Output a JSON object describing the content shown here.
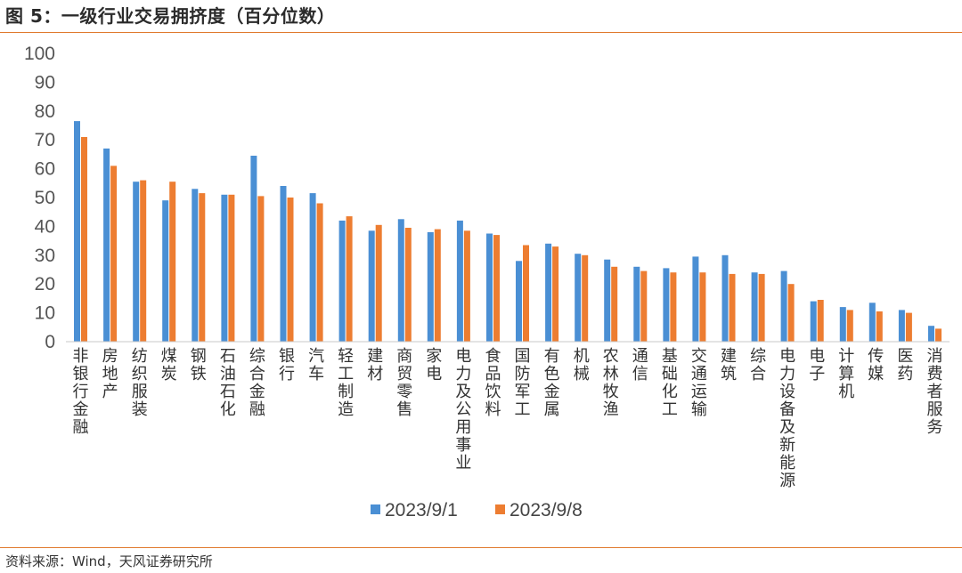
{
  "header": {
    "title": "图 5：一级行业交易拥挤度（百分位数）"
  },
  "footer": {
    "source": "资料来源：Wind，天风证券研究所"
  },
  "colors": {
    "series1": "#4a8fd4",
    "series2": "#ed7d31",
    "rule": "#e07a2e"
  },
  "chart_data": {
    "type": "bar",
    "title": "",
    "xlabel": "",
    "ylabel": "",
    "ylim": [
      0,
      100
    ],
    "yticks": [
      0,
      10,
      20,
      30,
      40,
      50,
      60,
      70,
      80,
      90,
      100
    ],
    "grid": false,
    "legend_position": "bottom",
    "categories": [
      "非银行金融",
      "房地产",
      "纺织服装",
      "煤炭",
      "钢铁",
      "石油石化",
      "综合金融",
      "银行",
      "汽车",
      "轻工制造",
      "建材",
      "商贸零售",
      "家电",
      "电力及公用事业",
      "食品饮料",
      "国防军工",
      "有色金属",
      "机械",
      "农林牧渔",
      "通信",
      "基础化工",
      "交通运输",
      "建筑",
      "综合",
      "电力设备及新能源",
      "电子",
      "计算机",
      "传媒",
      "医药",
      "消费者服务"
    ],
    "series": [
      {
        "name": "2023/9/1",
        "values": [
          76.5,
          67,
          55.5,
          49,
          53,
          51,
          64.5,
          54,
          51.5,
          42,
          38.5,
          42.5,
          38,
          42,
          37.5,
          28,
          34,
          30.5,
          28.5,
          26,
          25.5,
          29.5,
          30,
          24,
          24.5,
          14,
          12,
          13.5,
          11,
          5.5
        ]
      },
      {
        "name": "2023/9/8",
        "values": [
          71,
          61,
          56,
          55.5,
          51.5,
          51,
          50.5,
          50,
          48,
          43.5,
          40.5,
          39.5,
          39,
          38.5,
          37,
          33.5,
          33,
          30,
          26,
          24.5,
          24,
          24,
          23.5,
          23.5,
          20,
          14.5,
          11,
          10.5,
          10,
          4.5
        ]
      }
    ]
  }
}
